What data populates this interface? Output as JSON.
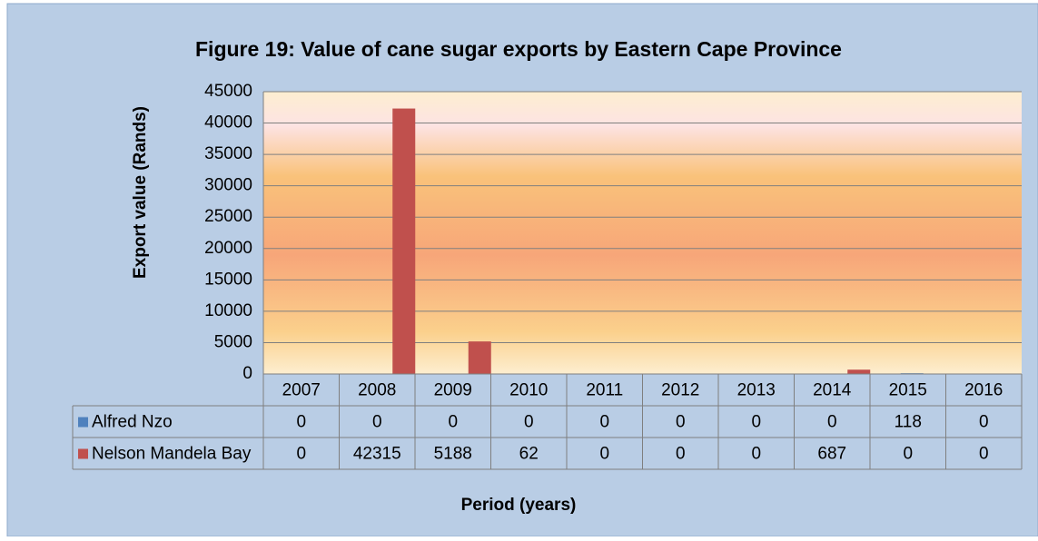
{
  "chart_data": {
    "type": "bar",
    "title": "Figure 19: Value of cane sugar exports by Eastern Cape Province",
    "y_label": "Export value (Rands)",
    "x_label": "Period (years)",
    "categories": [
      "2007",
      "2008",
      "2009",
      "2010",
      "2011",
      "2012",
      "2013",
      "2014",
      "2015",
      "2016"
    ],
    "series": [
      {
        "name": "Alfred Nzo",
        "color": "#4f81bd",
        "values": [
          0,
          0,
          0,
          0,
          0,
          0,
          0,
          0,
          118,
          0
        ]
      },
      {
        "name": "Nelson Mandela Bay",
        "color": "#c0504d",
        "values": [
          0,
          42315,
          5188,
          62,
          0,
          0,
          0,
          687,
          0,
          0
        ]
      }
    ],
    "ylim": [
      0,
      45000
    ],
    "yticks": [
      0,
      5000,
      10000,
      15000,
      20000,
      25000,
      30000,
      35000,
      40000,
      45000
    ],
    "grid": true
  }
}
